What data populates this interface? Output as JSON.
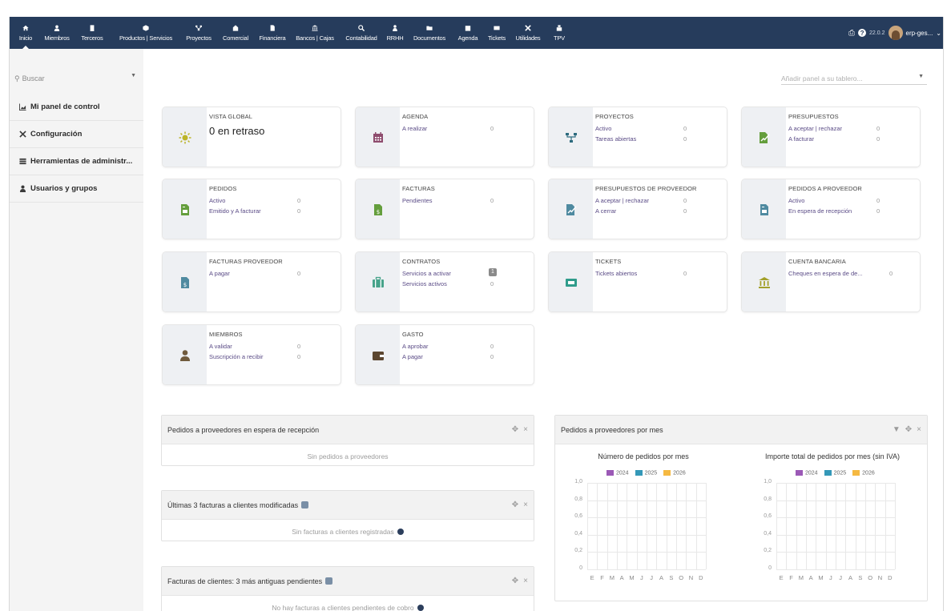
{
  "nav": [
    {
      "label": "Inicio",
      "icon": "home-icon",
      "active": true
    },
    {
      "label": "Miembros",
      "icon": "user-icon"
    },
    {
      "label": "Terceros",
      "icon": "building-icon"
    },
    {
      "label": "Productos | Servicios",
      "icon": "cube-icon"
    },
    {
      "label": "Proyectos",
      "icon": "sitemap-icon"
    },
    {
      "label": "Comercial",
      "icon": "suitcase-icon"
    },
    {
      "label": "Financiera",
      "icon": "file-dollar-icon"
    },
    {
      "label": "Bancos | Cajas",
      "icon": "bank-icon"
    },
    {
      "label": "Contabilidad",
      "icon": "search-dollar-icon"
    },
    {
      "label": "RRHH",
      "icon": "person-icon"
    },
    {
      "label": "Documentos",
      "icon": "folder-icon"
    },
    {
      "label": "Agenda",
      "icon": "calendar-icon"
    },
    {
      "label": "Tickets",
      "icon": "ticket-icon"
    },
    {
      "label": "Utilidades",
      "icon": "tools-icon"
    },
    {
      "label": "TPV",
      "icon": "cash-register-icon"
    }
  ],
  "topright": {
    "version": "22.0.2",
    "user": "erp-ges..."
  },
  "sidebar": {
    "search_placeholder": "Buscar",
    "items": [
      {
        "label": "Mi panel de control",
        "icon": "chart-area-icon"
      },
      {
        "label": "Configuración",
        "icon": "wrench-icon"
      },
      {
        "label": "Herramientas de administr...",
        "icon": "list-icon"
      },
      {
        "label": "Usuarios y grupos",
        "icon": "user-icon"
      }
    ]
  },
  "panel_select": {
    "placeholder": "Añadir panel a su tablero..."
  },
  "boxes": {
    "vista_global": {
      "title": "VISTA GLOBAL",
      "big": "0 en retraso",
      "icon": "sun-icon",
      "color": "#bcb428"
    },
    "agenda": {
      "title": "AGENDA",
      "icon": "calendar-icon",
      "color": "#8e4d6e",
      "lines": [
        {
          "label": "A realizar",
          "value": "0"
        }
      ]
    },
    "proyectos": {
      "title": "PROYECTOS",
      "icon": "sitemap-icon",
      "color": "#2d6b7e",
      "lines": [
        {
          "label": "Activo",
          "value": "0"
        },
        {
          "label": "Tareas abiertas",
          "value": "0"
        }
      ]
    },
    "presupuestos": {
      "title": "PRESUPUESTOS",
      "icon": "file-signature-icon",
      "color": "#649e3c",
      "lines": [
        {
          "label": "A aceptar | rechazar",
          "value": "0"
        },
        {
          "label": "A facturar",
          "value": "0"
        }
      ]
    },
    "pedidos": {
      "title": "PEDIDOS",
      "icon": "file-invoice-icon",
      "color": "#649e3c",
      "lines": [
        {
          "label": "Activo",
          "value": "0"
        },
        {
          "label": "Emitido y A facturar",
          "value": "0"
        }
      ]
    },
    "facturas": {
      "title": "FACTURAS",
      "icon": "file-dollar-icon",
      "color": "#649e3c",
      "lines": [
        {
          "label": "Pendientes",
          "value": "0"
        }
      ]
    },
    "presupuestos_proveedor": {
      "title": "PRESUPUESTOS DE PROVEEDOR",
      "icon": "file-signature-icon",
      "color": "#4f8aa0",
      "lines": [
        {
          "label": "A aceptar | rechazar",
          "value": "0"
        },
        {
          "label": "A cerrar",
          "value": "0"
        }
      ]
    },
    "pedidos_proveedor": {
      "title": "PEDIDOS A PROVEEDOR",
      "icon": "file-invoice-icon",
      "color": "#4f8aa0",
      "lines": [
        {
          "label": "Activo",
          "value": "0"
        },
        {
          "label": "En espera de recepción",
          "value": "0"
        }
      ]
    },
    "facturas_proveedor": {
      "title": "FACTURAS PROVEEDOR",
      "icon": "file-dollar-icon",
      "color": "#4f8aa0",
      "lines": [
        {
          "label": "A pagar",
          "value": "0"
        }
      ]
    },
    "contratos": {
      "title": "CONTRATOS",
      "icon": "suitcase-icon",
      "color": "#47a38a",
      "lines": [
        {
          "label": "Servicios a activar",
          "value": "1"
        },
        {
          "label": "Servicios activos",
          "value": "0"
        }
      ]
    },
    "tickets": {
      "title": "TICKETS",
      "icon": "ticket-icon",
      "color": "#2f9c8b",
      "lines": [
        {
          "label": "Tickets abiertos",
          "value": "0"
        }
      ]
    },
    "cuenta_bancaria": {
      "title": "CUENTA BANCARIA",
      "icon": "bank-icon",
      "color": "#a3a02a",
      "lines": [
        {
          "label": "Cheques en espera de de...",
          "value": "0"
        }
      ]
    },
    "miembros": {
      "title": "MIEMBROS",
      "icon": "user-icon",
      "color": "#6f5a3c",
      "lines": [
        {
          "label": "A validar",
          "value": "0"
        },
        {
          "label": "Suscripción a recibir",
          "value": "0"
        }
      ]
    },
    "gasto": {
      "title": "GASTO",
      "icon": "wallet-icon",
      "color": "#5b4630",
      "lines": [
        {
          "label": "A aprobar",
          "value": "0"
        },
        {
          "label": "A pagar",
          "value": "0"
        }
      ]
    }
  },
  "widgets": {
    "w1": {
      "title": "Pedidos a proveedores en espera de recepción",
      "empty": "Sin pedidos a proveedores"
    },
    "w2": {
      "title": "Últimas 3 facturas a clientes modificadas",
      "empty": "Sin facturas a clientes registradas"
    },
    "w3": {
      "title": "Facturas de clientes: 3 más antiguas pendientes",
      "empty": "No hay facturas a clientes pendientes de cobro"
    },
    "w4": {
      "title": "Pedidos a proveedores por mes"
    }
  },
  "chart_data": [
    {
      "type": "bar",
      "title": "Número de pedidos por mes",
      "categories": [
        "E",
        "F",
        "M",
        "A",
        "M",
        "J",
        "J",
        "A",
        "S",
        "O",
        "N",
        "D"
      ],
      "series": [
        {
          "name": "2024",
          "color": "#9b59b6",
          "values": [
            0,
            0,
            0,
            0,
            0,
            0,
            0,
            0,
            0,
            0,
            0,
            0
          ]
        },
        {
          "name": "2025",
          "color": "#3498b8",
          "values": [
            0,
            0,
            0,
            0,
            0,
            0,
            0,
            0,
            0,
            0,
            0,
            0
          ]
        },
        {
          "name": "2026",
          "color": "#f5b942",
          "values": [
            0,
            0,
            0,
            0,
            0,
            0,
            0,
            0,
            0,
            0,
            0,
            0
          ]
        }
      ],
      "ylim": [
        0,
        1
      ],
      "yticks": [
        "1,0",
        "0,8",
        "0,6",
        "0,4",
        "0,2",
        "0"
      ],
      "legend": "top"
    },
    {
      "type": "bar",
      "title": "Importe total de pedidos por mes (sin IVA)",
      "categories": [
        "E",
        "F",
        "M",
        "A",
        "M",
        "J",
        "J",
        "A",
        "S",
        "O",
        "N",
        "D"
      ],
      "series": [
        {
          "name": "2024",
          "color": "#9b59b6",
          "values": [
            0,
            0,
            0,
            0,
            0,
            0,
            0,
            0,
            0,
            0,
            0,
            0
          ]
        },
        {
          "name": "2025",
          "color": "#3498b8",
          "values": [
            0,
            0,
            0,
            0,
            0,
            0,
            0,
            0,
            0,
            0,
            0,
            0
          ]
        },
        {
          "name": "2026",
          "color": "#f5b942",
          "values": [
            0,
            0,
            0,
            0,
            0,
            0,
            0,
            0,
            0,
            0,
            0,
            0
          ]
        }
      ],
      "ylim": [
        0,
        1
      ],
      "yticks": [
        "1,0",
        "0,8",
        "0,6",
        "0,4",
        "0,2",
        "0"
      ],
      "legend": "top"
    }
  ]
}
